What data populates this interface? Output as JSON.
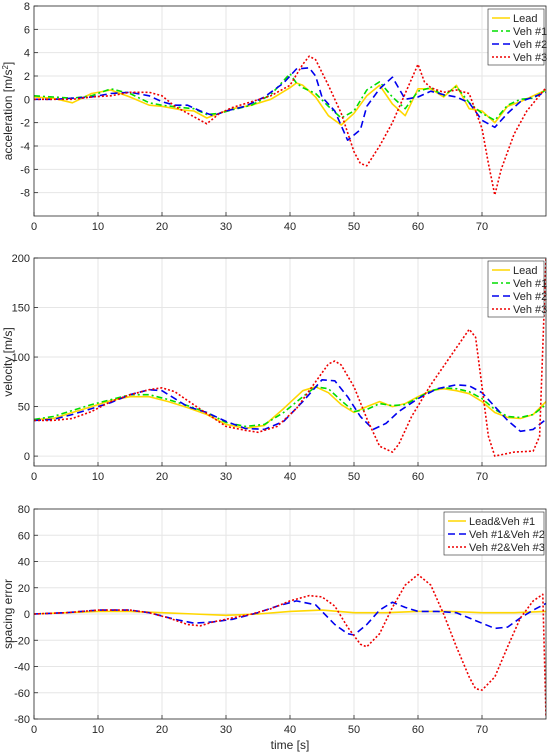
{
  "chart_data": [
    {
      "type": "line",
      "ylabel": "acceleration [m/s",
      "ylabel_sup": "2",
      "ylabel_close": "]",
      "xlabel": "",
      "xlim": [
        0,
        80
      ],
      "ylim": [
        -10,
        8
      ],
      "xticks": [
        "0",
        "10",
        "20",
        "30",
        "40",
        "50",
        "60",
        "70"
      ],
      "yticks": [
        "-8",
        "-6",
        "-4",
        "-2",
        "0",
        "2",
        "4",
        "6",
        "8"
      ],
      "grid": true,
      "legend": "top-right",
      "series": [
        {
          "name": "Lead",
          "color": "#FFD700",
          "dash": "solid",
          "x": [
            0,
            3,
            6,
            9,
            12,
            15,
            18,
            20,
            23,
            25,
            27,
            29,
            31,
            34,
            37,
            40,
            41,
            42,
            44,
            46,
            48,
            50,
            52,
            54,
            56,
            58,
            60,
            62,
            64,
            66,
            68,
            70,
            72,
            74,
            76,
            78,
            80
          ],
          "y": [
            0.2,
            0.1,
            -0.3,
            0.5,
            0.8,
            0.2,
            -0.5,
            -0.6,
            -0.9,
            -1.0,
            -1.6,
            -1.2,
            -0.8,
            -0.5,
            0.0,
            1.0,
            1.4,
            1.2,
            0.2,
            -1.4,
            -2.2,
            -1.2,
            0.3,
            1.2,
            -0.4,
            -1.4,
            0.9,
            0.9,
            0.2,
            1.2,
            -0.8,
            -1.0,
            -2.0,
            -0.6,
            -0.2,
            0.3,
            0.8
          ]
        },
        {
          "name": "Veh #1",
          "color": "#00DD00",
          "dash": "6,3,2,3",
          "x": [
            0,
            3,
            6,
            9,
            12,
            15,
            18,
            20,
            23,
            25,
            27,
            29,
            31,
            34,
            37,
            40,
            41,
            42,
            44,
            46,
            48,
            50,
            52,
            54,
            56,
            58,
            60,
            62,
            64,
            66,
            68,
            70,
            72,
            74,
            76,
            78,
            80
          ],
          "y": [
            0.3,
            0.2,
            0.1,
            0.3,
            0.9,
            0.5,
            -0.3,
            -0.5,
            -0.7,
            -0.8,
            -1.3,
            -1.2,
            -0.9,
            -0.5,
            0.4,
            2.2,
            1.4,
            1.0,
            0.5,
            -0.6,
            -1.6,
            -1.0,
            0.8,
            1.5,
            0.2,
            -0.8,
            0.7,
            1.0,
            0.3,
            1.1,
            -0.3,
            -1.2,
            -1.8,
            -0.5,
            0.0,
            0.1,
            0.8
          ]
        },
        {
          "name": "Veh #2",
          "color": "#0000EE",
          "dash": "7,4",
          "x": [
            0,
            3,
            6,
            9,
            12,
            15,
            18,
            20,
            22,
            24,
            26,
            28,
            30,
            33,
            36,
            39,
            41,
            43,
            44,
            45,
            47,
            49,
            51,
            52,
            54,
            56,
            58,
            60,
            62,
            64,
            66,
            68,
            70,
            72,
            74,
            76,
            78,
            80
          ],
          "y": [
            0.0,
            0.0,
            0.1,
            0.2,
            0.5,
            0.6,
            0.3,
            -0.2,
            -0.5,
            -0.5,
            -1.0,
            -1.4,
            -1.0,
            -0.6,
            0.2,
            1.4,
            2.6,
            2.7,
            2.0,
            0.2,
            -1.0,
            -3.5,
            -2.6,
            -0.6,
            0.9,
            1.9,
            0.0,
            0.2,
            0.7,
            0.4,
            0.2,
            -0.3,
            -1.8,
            -2.4,
            -1.2,
            -0.2,
            0.2,
            0.6
          ]
        },
        {
          "name": "Veh #3",
          "color": "#EE0000",
          "dash": "2,2",
          "x": [
            0,
            3,
            6,
            9,
            12,
            15,
            18,
            20,
            22,
            24,
            26,
            27,
            29,
            31,
            34,
            37,
            40,
            42,
            43,
            44,
            46,
            48,
            50,
            51,
            52,
            54,
            56,
            58,
            60,
            61,
            62,
            64,
            66,
            68,
            70,
            71,
            72,
            73,
            75,
            77,
            80
          ],
          "y": [
            0.0,
            0.0,
            0.0,
            0.2,
            0.3,
            0.6,
            0.6,
            0.3,
            -0.6,
            -1.2,
            -1.8,
            -2.1,
            -1.2,
            -0.7,
            -0.2,
            0.3,
            1.2,
            3.0,
            3.7,
            3.4,
            1.2,
            -1.2,
            -4.5,
            -5.5,
            -5.7,
            -4.0,
            -2.0,
            0.5,
            3.0,
            1.5,
            1.0,
            0.6,
            0.8,
            0.5,
            -2.5,
            -5.5,
            -8.2,
            -6.0,
            -3.0,
            -1.0,
            1.0
          ]
        }
      ]
    },
    {
      "type": "line",
      "ylabel": "velocity [m/s]",
      "xlabel": "",
      "xlim": [
        0,
        80
      ],
      "ylim": [
        -10,
        200
      ],
      "xticks": [
        "0",
        "10",
        "20",
        "30",
        "40",
        "50",
        "60",
        "70"
      ],
      "yticks": [
        "0",
        "50",
        "100",
        "150",
        "200"
      ],
      "grid": true,
      "legend": "top-right",
      "series": [
        {
          "name": "Lead",
          "color": "#FFD700",
          "dash": "solid",
          "x": [
            0,
            3,
            6,
            9,
            12,
            15,
            18,
            21,
            24,
            27,
            30,
            33,
            36,
            39,
            42,
            44,
            46,
            48,
            50,
            52,
            54,
            56,
            58,
            60,
            62,
            64,
            66,
            68,
            70,
            72,
            74,
            76,
            78,
            80
          ],
          "y": [
            37,
            38,
            44,
            50,
            56,
            60,
            60,
            55,
            49,
            42,
            32,
            28,
            31,
            48,
            66,
            70,
            64,
            52,
            44,
            50,
            55,
            50,
            53,
            60,
            66,
            68,
            66,
            63,
            55,
            44,
            39,
            38,
            42,
            55
          ]
        },
        {
          "name": "Veh #1",
          "color": "#00DD00",
          "dash": "6,3,2,3",
          "x": [
            0,
            3,
            6,
            9,
            12,
            15,
            18,
            21,
            24,
            27,
            30,
            33,
            36,
            39,
            42,
            44,
            46,
            48,
            50,
            52,
            54,
            56,
            58,
            60,
            62,
            64,
            66,
            68,
            70,
            72,
            74,
            76,
            78,
            80
          ],
          "y": [
            37,
            40,
            46,
            52,
            57,
            62,
            62,
            57,
            51,
            44,
            34,
            30,
            32,
            44,
            60,
            70,
            68,
            56,
            45,
            47,
            53,
            51,
            52,
            59,
            66,
            69,
            68,
            65,
            58,
            47,
            40,
            39,
            42,
            52
          ]
        },
        {
          "name": "Veh #2",
          "color": "#0000EE",
          "dash": "7,4",
          "x": [
            0,
            3,
            6,
            9,
            12,
            15,
            18,
            20,
            22,
            24,
            27,
            30,
            33,
            36,
            39,
            42,
            45,
            47,
            49,
            51,
            53,
            55,
            57,
            60,
            63,
            66,
            68,
            70,
            72,
            74,
            76,
            78,
            80
          ],
          "y": [
            36,
            37,
            42,
            48,
            54,
            62,
            67,
            66,
            58,
            50,
            44,
            35,
            28,
            27,
            35,
            55,
            77,
            76,
            60,
            40,
            27,
            33,
            45,
            58,
            68,
            72,
            71,
            64,
            50,
            36,
            25,
            27,
            37
          ]
        },
        {
          "name": "Veh #3",
          "color": "#EE0000",
          "dash": "2,2",
          "x": [
            0,
            3,
            6,
            9,
            12,
            15,
            18,
            20,
            22,
            24,
            27,
            30,
            33,
            35,
            38,
            41,
            44,
            46,
            47,
            48,
            50,
            52,
            54,
            56,
            57,
            59,
            62,
            65,
            68,
            69,
            70,
            71,
            72,
            75,
            78,
            79,
            80
          ],
          "y": [
            36,
            36,
            38,
            45,
            55,
            62,
            67,
            69,
            65,
            56,
            43,
            30,
            26,
            24,
            30,
            48,
            75,
            93,
            96,
            92,
            70,
            38,
            10,
            4,
            12,
            40,
            72,
            100,
            128,
            120,
            70,
            20,
            0,
            4,
            5,
            20,
            200
          ]
        }
      ]
    },
    {
      "type": "line",
      "ylabel": "spacing error",
      "xlabel": "time [s]",
      "xlim": [
        0,
        80
      ],
      "ylim": [
        -80,
        80
      ],
      "xticks": [
        "0",
        "10",
        "20",
        "30",
        "40",
        "50",
        "60",
        "70"
      ],
      "yticks": [
        "-80",
        "-60",
        "-40",
        "-20",
        "0",
        "20",
        "40",
        "60",
        "80"
      ],
      "grid": true,
      "legend": "top-right",
      "series": [
        {
          "name": "Lead&Veh #1",
          "color": "#FFD700",
          "dash": "solid",
          "x": [
            0,
            5,
            10,
            15,
            20,
            25,
            30,
            35,
            40,
            45,
            50,
            55,
            60,
            65,
            70,
            75,
            80
          ],
          "y": [
            0,
            1,
            2,
            2,
            1,
            0,
            -1,
            0,
            2,
            3,
            1,
            1,
            2,
            2,
            1,
            1,
            2
          ]
        },
        {
          "name": "Veh #1&Veh #2",
          "color": "#0000EE",
          "dash": "7,4",
          "x": [
            0,
            5,
            10,
            15,
            18,
            22,
            25,
            28,
            31,
            35,
            38,
            41,
            44,
            47,
            49,
            50,
            52,
            54,
            56,
            58,
            60,
            63,
            66,
            69,
            72,
            74,
            76,
            78,
            80
          ],
          "y": [
            0,
            1,
            3,
            3,
            1,
            -4,
            -7,
            -6,
            -4,
            1,
            6,
            10,
            7,
            -8,
            -15,
            -16,
            -8,
            3,
            9,
            5,
            2,
            2,
            1,
            -5,
            -11,
            -10,
            -3,
            3,
            8
          ]
        },
        {
          "name": "Veh #2&Veh #3",
          "color": "#EE0000",
          "dash": "2,2",
          "x": [
            0,
            5,
            10,
            15,
            18,
            21,
            24,
            26,
            28,
            31,
            34,
            37,
            40,
            43,
            45,
            47,
            49,
            51,
            52,
            54,
            56,
            58,
            60,
            62,
            64,
            66,
            68,
            69,
            70,
            72,
            74,
            76,
            78,
            79.5,
            80
          ],
          "y": [
            0,
            1,
            3,
            3,
            1,
            -3,
            -8,
            -9,
            -6,
            -3,
            0,
            4,
            10,
            14,
            13,
            6,
            -10,
            -23,
            -25,
            -15,
            5,
            22,
            30,
            22,
            0,
            -25,
            -48,
            -57,
            -58,
            -48,
            -25,
            -3,
            10,
            15,
            -78
          ]
        }
      ]
    }
  ]
}
